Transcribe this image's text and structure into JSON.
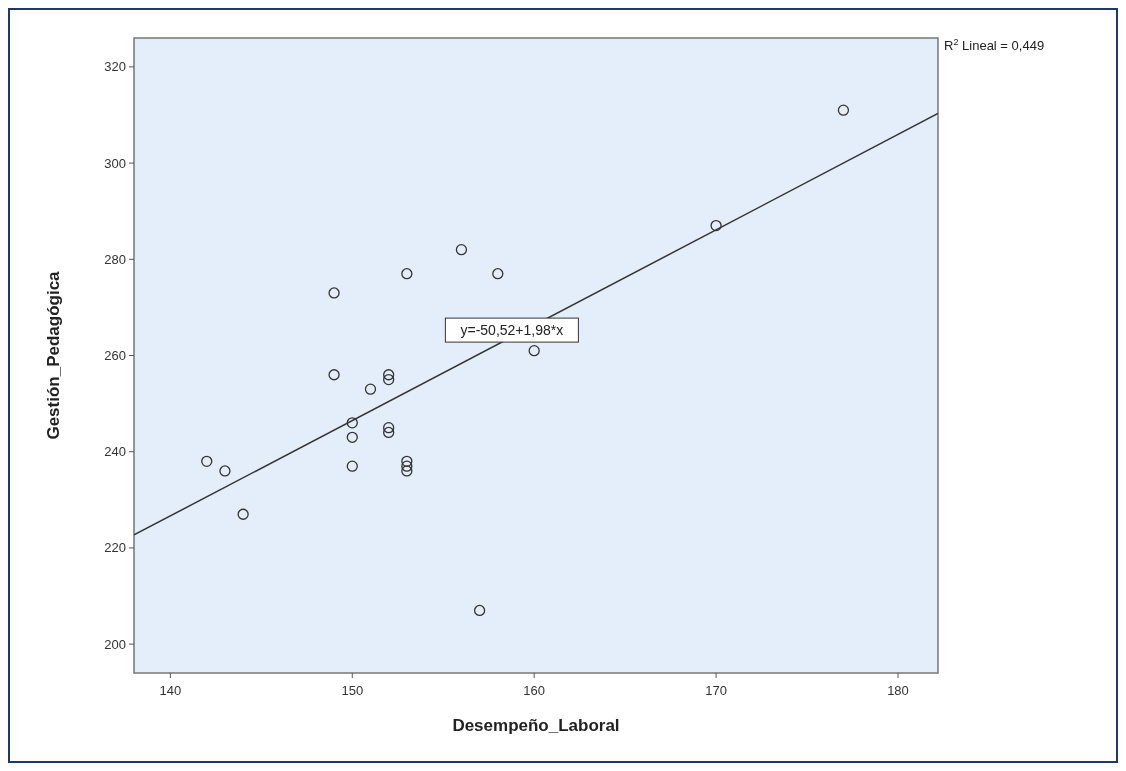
{
  "chart_data": {
    "type": "scatter",
    "xlabel": "Desempeño_Laboral",
    "ylabel": "Gestión_Pedagógica",
    "xlim": [
      138,
      182.2
    ],
    "ylim": [
      194,
      326
    ],
    "xticks": [
      140,
      150,
      160,
      170,
      180
    ],
    "yticks": [
      200,
      220,
      240,
      260,
      280,
      300,
      320
    ],
    "grid": false,
    "series": [
      {
        "color": "#333333",
        "marker": "circle",
        "x": [
          177,
          170,
          156,
          158,
          153,
          149,
          160,
          149,
          152,
          152,
          151,
          150,
          152,
          152,
          150,
          153,
          142,
          153,
          150,
          143,
          153,
          144,
          157
        ],
        "values": [
          311,
          287,
          282,
          277,
          277,
          273,
          261,
          256,
          256,
          255,
          253,
          246,
          245,
          244,
          243,
          238,
          238,
          237,
          237,
          236,
          236,
          227,
          207
        ]
      },
      {
        "type": "line",
        "color": "#333333",
        "marker": "none",
        "x": [
          138,
          182.2
        ],
        "values": [
          222.7,
          310.3
        ]
      }
    ],
    "annotations": [
      "y=-50,52+1,98*x",
      "R$^{2}$ Lineal = 0,449"
    ]
  }
}
